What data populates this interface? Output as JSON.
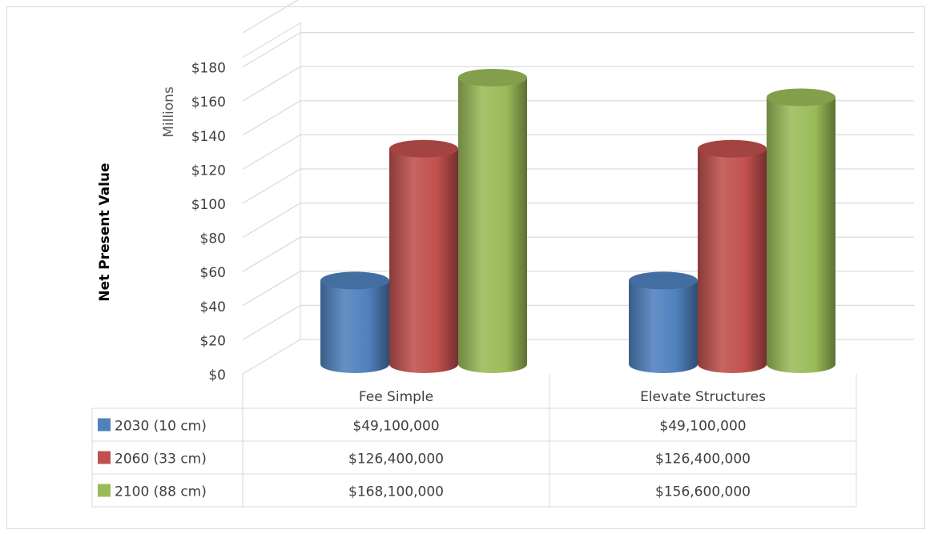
{
  "chart_data": {
    "type": "bar",
    "style": "3d-cylinder",
    "ylabel": "Net Present Value",
    "y_unit_label": "Millions",
    "ylim": [
      0,
      180
    ],
    "y_ticks": [
      "$0",
      "$20",
      "$40",
      "$60",
      "$80",
      "$100",
      "$120",
      "$140",
      "$160",
      "$180"
    ],
    "y_tick_values": [
      0,
      20,
      40,
      60,
      80,
      100,
      120,
      140,
      160,
      180
    ],
    "grid": true,
    "legend": "data-table",
    "categories": [
      "Fee Simple",
      "Elevate Structures"
    ],
    "series": [
      {
        "name": "2030 (10 cm)",
        "color": "#4f81bd",
        "values": [
          49.1,
          49.1
        ],
        "labels": [
          "$49,100,000",
          "$49,100,000"
        ]
      },
      {
        "name": "2060 (33 cm)",
        "color": "#c0504d",
        "values": [
          126.4,
          126.4
        ],
        "labels": [
          "$126,400,000",
          "$126,400,000"
        ]
      },
      {
        "name": "2100 (88 cm)",
        "color": "#9bbb59",
        "values": [
          168.1,
          156.6
        ],
        "labels": [
          "$168,100,000",
          "$156,600,000"
        ]
      }
    ]
  }
}
